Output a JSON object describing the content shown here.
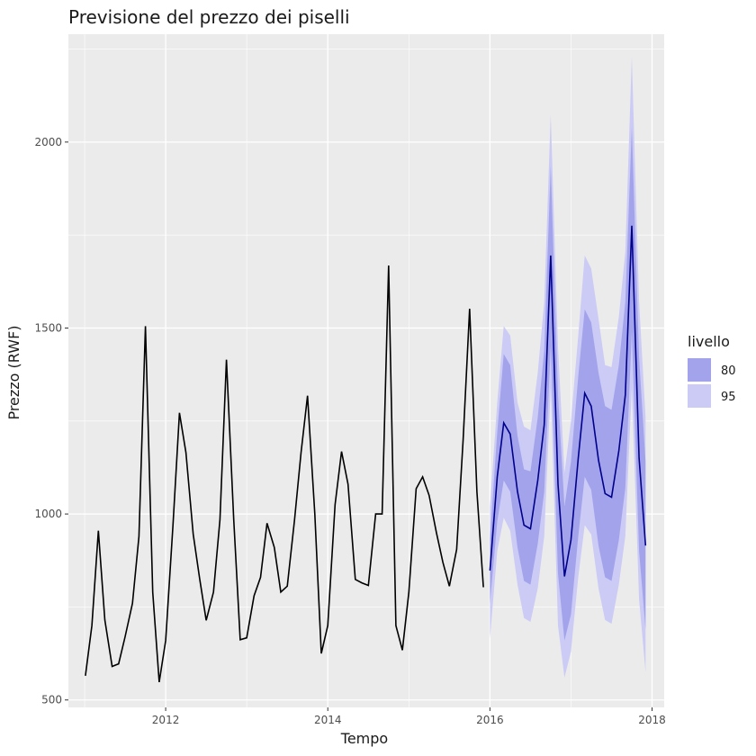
{
  "chart_data": {
    "type": "line",
    "title": "Previsione del prezzo dei piselli",
    "xlabel": "Tempo",
    "ylabel": "Prezzo (RWF)",
    "xlim": [
      2010.8,
      2018.15
    ],
    "ylim": [
      480,
      2290
    ],
    "x_ticks": [
      2012,
      2014,
      2016,
      2018
    ],
    "x_tick_labels": [
      "2012",
      "2014",
      "2016",
      "2018"
    ],
    "y_ticks": [
      500,
      1000,
      1500,
      2000
    ],
    "y_tick_labels": [
      "500",
      "1000",
      "1500",
      "2000"
    ],
    "grid": true,
    "legend": {
      "title": "livello",
      "position": "right",
      "entries": [
        {
          "label": "80",
          "color": "#a3a3ec"
        },
        {
          "label": "95",
          "color": "#cbcbf6"
        }
      ]
    },
    "colors": {
      "panel": "#ebebeb",
      "grid_major": "#ffffff",
      "history_line": "#000000",
      "forecast_line": "#00008b",
      "band_80": "#a3a3ec",
      "band_95": "#cbcbf6"
    },
    "history": {
      "x": [
        "2011.01",
        "2011.09",
        "2011.17",
        "2011.25",
        "2011.34",
        "2011.42",
        "2011.50",
        "2011.59",
        "2011.67",
        "2011.75",
        "2011.84",
        "2011.92",
        "2012.00",
        "2012.09",
        "2012.17",
        "2012.25",
        "2012.34",
        "2012.42",
        "2012.50",
        "2012.59",
        "2012.67",
        "2012.75",
        "2012.84",
        "2012.92",
        "2013.00",
        "2013.09",
        "2013.17",
        "2013.25",
        "2013.34",
        "2013.42",
        "2013.50",
        "2013.59",
        "2013.67",
        "2013.75",
        "2013.84",
        "2013.92",
        "2014.00",
        "2014.09",
        "2014.17",
        "2014.25",
        "2014.34",
        "2014.42",
        "2014.50",
        "2014.59",
        "2014.67",
        "2014.75",
        "2014.84",
        "2014.92",
        "2015.00",
        "2015.09",
        "2015.17",
        "2015.25",
        "2015.34",
        "2015.42",
        "2015.50",
        "2015.59",
        "2015.67",
        "2015.75",
        "2015.84",
        "2015.92"
      ],
      "y": [
        565,
        700,
        955,
        715,
        590,
        597,
        670,
        760,
        940,
        1505,
        790,
        548,
        660,
        970,
        1272,
        1165,
        945,
        825,
        714,
        790,
        985,
        1415,
        985,
        662,
        667,
        780,
        830,
        975,
        910,
        790,
        806,
        985,
        1165,
        1318,
        1000,
        625,
        700,
        1025,
        1168,
        1080,
        824,
        815,
        808,
        1000,
        1000,
        1668,
        700,
        634,
        790,
        1068,
        1100,
        1050,
        950,
        870,
        806,
        905,
        1200,
        1552,
        1060,
        803
      ]
    },
    "forecast": {
      "x": [
        "2016.00",
        "2016.09",
        "2016.17",
        "2016.25",
        "2016.34",
        "2016.42",
        "2016.50",
        "2016.59",
        "2016.67",
        "2016.75",
        "2016.84",
        "2016.92",
        "2017.00",
        "2017.09",
        "2017.17",
        "2017.25",
        "2017.34",
        "2017.42",
        "2017.50",
        "2017.59",
        "2017.67",
        "2017.75",
        "2017.84",
        "2017.92"
      ],
      "mean": [
        848,
        1100,
        1245,
        1215,
        1060,
        970,
        960,
        1090,
        1240,
        1695,
        1080,
        832,
        930,
        1150,
        1325,
        1290,
        1145,
        1055,
        1045,
        1170,
        1320,
        1775,
        1150,
        915
      ],
      "lo80": [
        760,
        980,
        1090,
        1060,
        910,
        820,
        810,
        920,
        1060,
        1450,
        840,
        660,
        730,
        940,
        1100,
        1065,
        915,
        830,
        820,
        930,
        1070,
        1490,
        900,
        690
      ],
      "hi80": [
        935,
        1220,
        1430,
        1400,
        1210,
        1120,
        1115,
        1260,
        1440,
        1935,
        1320,
        1020,
        1140,
        1370,
        1550,
        1515,
        1380,
        1290,
        1280,
        1400,
        1570,
        2040,
        1420,
        1140
      ],
      "lo95": [
        665,
        900,
        990,
        955,
        810,
        720,
        710,
        800,
        940,
        1340,
        700,
        560,
        630,
        830,
        970,
        945,
        800,
        715,
        705,
        810,
        940,
        1340,
        770,
        575
      ],
      "hi95": [
        1020,
        1300,
        1505,
        1480,
        1300,
        1235,
        1225,
        1380,
        1570,
        2075,
        1450,
        1110,
        1250,
        1480,
        1695,
        1660,
        1525,
        1400,
        1395,
        1530,
        1705,
        2230,
        1570,
        1260
      ]
    }
  }
}
